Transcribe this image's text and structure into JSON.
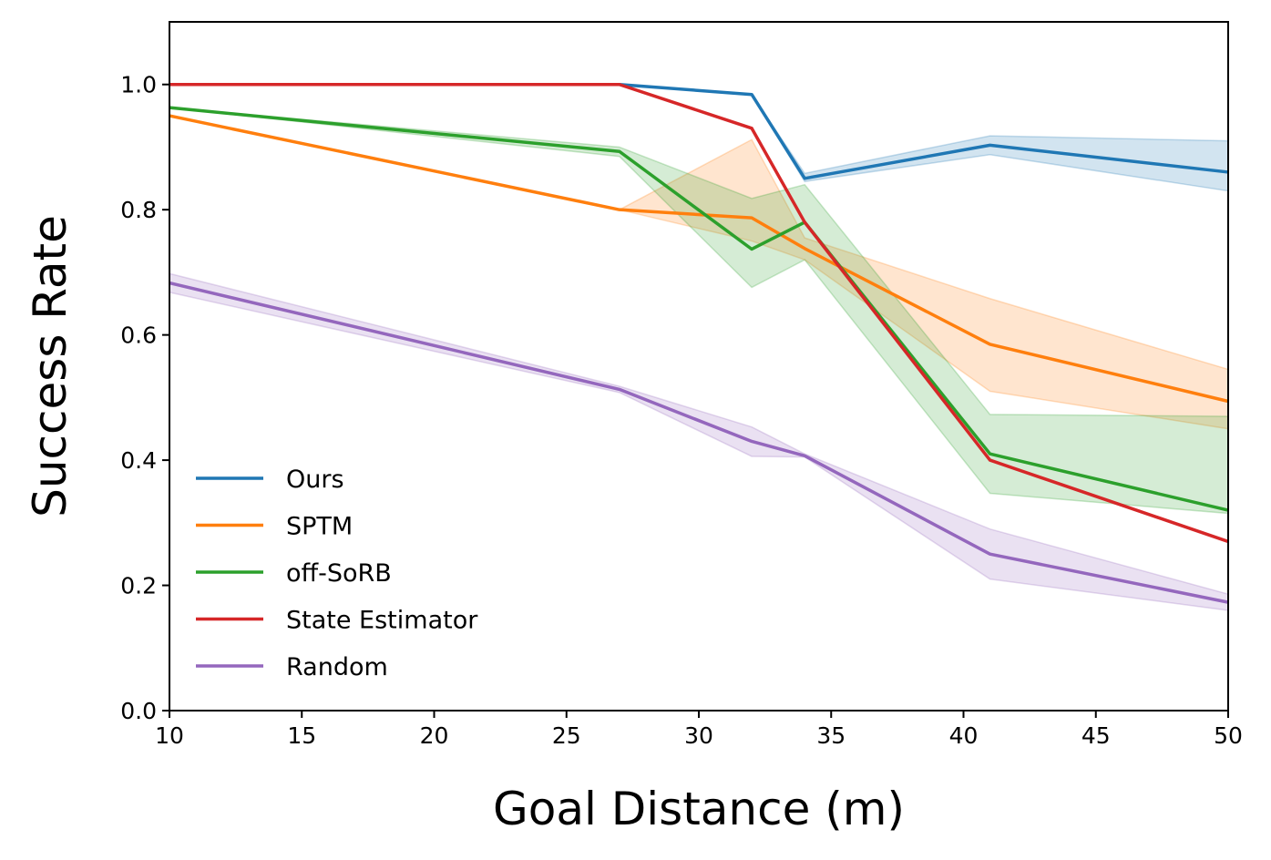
{
  "chart_data": {
    "type": "line",
    "title": "",
    "xlabel": "Goal Distance (m)",
    "ylabel": "Success Rate",
    "xlim": [
      10,
      50
    ],
    "ylim": [
      0,
      1.1
    ],
    "xticks": [
      10,
      15,
      20,
      25,
      30,
      35,
      40,
      45,
      50
    ],
    "xtick_labels": [
      "10",
      "15",
      "20",
      "25",
      "30",
      "35",
      "40",
      "45",
      "50"
    ],
    "yticks": [
      0.0,
      0.2,
      0.4,
      0.6,
      0.8,
      1.0
    ],
    "ytick_labels": [
      "0.0",
      "0.2",
      "0.4",
      "0.6",
      "0.8",
      "1.0"
    ],
    "grid": false,
    "legend_position": "lower-left",
    "series": [
      {
        "name": "Ours",
        "color": "#1f77b4",
        "x": [
          10,
          27,
          32,
          34,
          41,
          50
        ],
        "y": [
          1.0,
          1.0,
          0.984,
          0.85,
          0.903,
          0.86
        ],
        "lower": [
          1.0,
          1.0,
          0.984,
          0.845,
          0.888,
          0.83
        ],
        "upper": [
          1.0,
          1.0,
          0.984,
          0.858,
          0.918,
          0.91
        ]
      },
      {
        "name": "SPTM",
        "color": "#ff7f0e",
        "x": [
          10,
          27,
          32,
          34,
          41,
          50
        ],
        "y": [
          0.95,
          0.8,
          0.787,
          0.738,
          0.585,
          0.494
        ],
        "lower": [
          0.95,
          0.8,
          0.75,
          0.72,
          0.51,
          0.45
        ],
        "upper": [
          0.95,
          0.8,
          0.912,
          0.755,
          0.658,
          0.545
        ]
      },
      {
        "name": "off-SoRB",
        "color": "#2ca02c",
        "x": [
          10,
          27,
          32,
          34,
          41,
          50
        ],
        "y": [
          0.963,
          0.893,
          0.737,
          0.78,
          0.41,
          0.32
        ],
        "lower": [
          0.963,
          0.885,
          0.676,
          0.72,
          0.347,
          0.315
        ],
        "upper": [
          0.963,
          0.9,
          0.818,
          0.84,
          0.473,
          0.47
        ]
      },
      {
        "name": "State Estimator",
        "color": "#d62728",
        "x": [
          10,
          27,
          32,
          34,
          41,
          50
        ],
        "y": [
          1.0,
          1.0,
          0.93,
          0.78,
          0.4,
          0.27
        ],
        "lower": [
          1.0,
          1.0,
          0.93,
          0.78,
          0.4,
          0.27
        ],
        "upper": [
          1.0,
          1.0,
          0.93,
          0.78,
          0.4,
          0.27
        ]
      },
      {
        "name": "Random",
        "color": "#9467bd",
        "x": [
          10,
          27,
          32,
          34,
          41,
          50
        ],
        "y": [
          0.683,
          0.513,
          0.43,
          0.407,
          0.25,
          0.173
        ],
        "lower": [
          0.668,
          0.508,
          0.406,
          0.405,
          0.21,
          0.16
        ],
        "upper": [
          0.698,
          0.518,
          0.453,
          0.41,
          0.29,
          0.186
        ]
      }
    ]
  }
}
